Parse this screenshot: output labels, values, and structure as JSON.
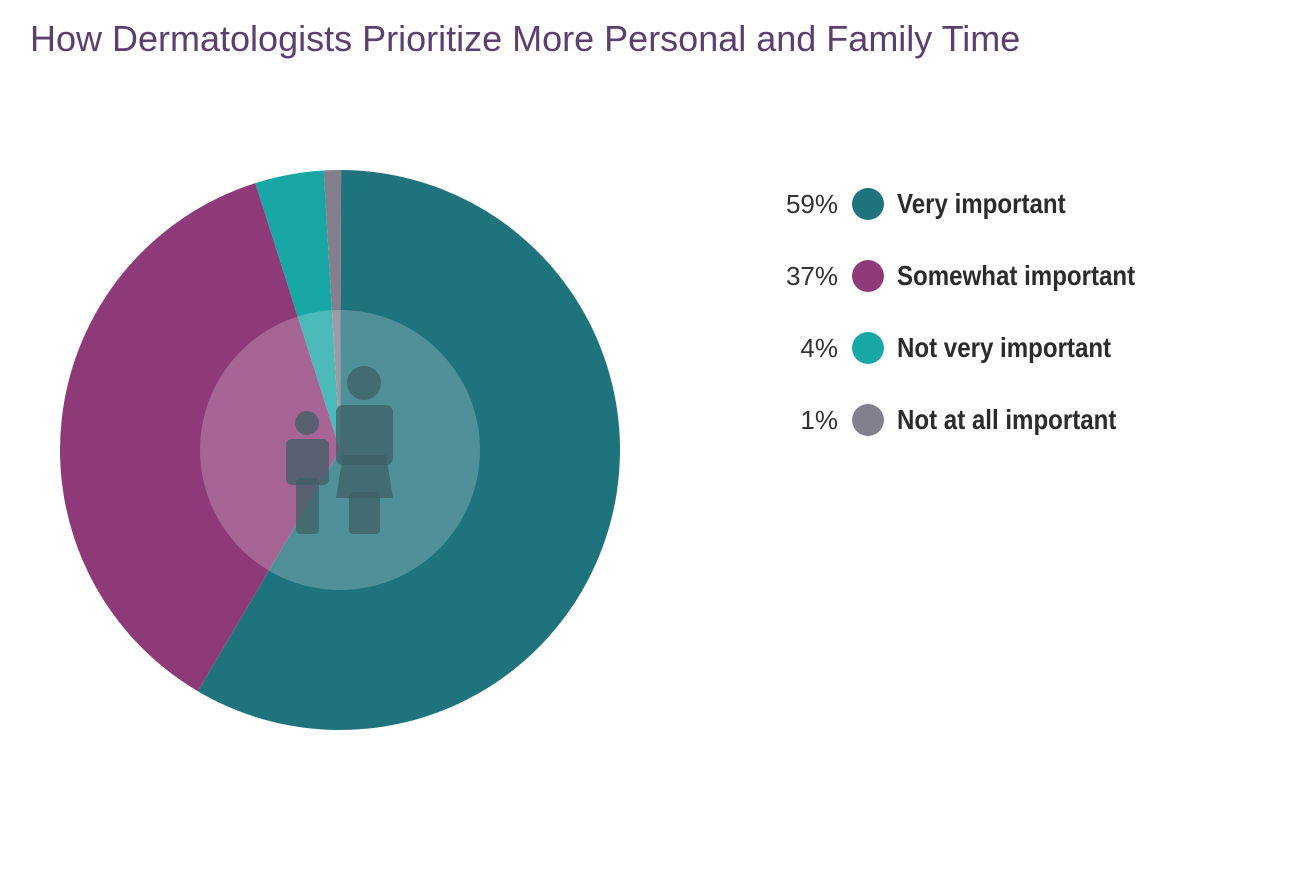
{
  "chart_data": {
    "type": "pie",
    "title": "How Dermatologists Prioritize More Personal and Family Time",
    "slices": [
      {
        "label": "Very important",
        "value": 59,
        "display": "59%",
        "color": "#1f737d"
      },
      {
        "label": "Somewhat important",
        "value": 37,
        "display": "37%",
        "color": "#8f3a78"
      },
      {
        "label": "Not very important",
        "value": 4,
        "display": "4%",
        "color": "#19a7a6"
      },
      {
        "label": "Not at all important",
        "value": 1,
        "display": "1%",
        "color": "#837f8d"
      }
    ],
    "legend_position": "right",
    "center_icon": "family-icon"
  }
}
